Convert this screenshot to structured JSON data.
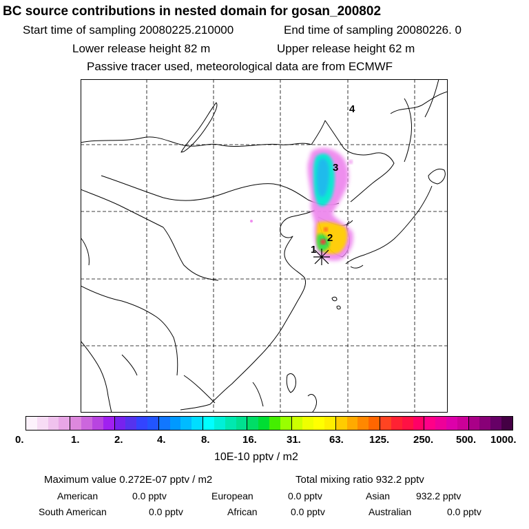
{
  "header": {
    "title": "BC  source contributions in nested domain for gosan_200802",
    "start_time": "Start time of sampling 20080225.210000",
    "end_time": "End time of sampling 20080226.     0",
    "lower_release": "Lower release height   82 m",
    "upper_release": "Upper release height   62 m",
    "tracer_note": "Passive tracer used, meteorological data are from ECMWF"
  },
  "map": {
    "markers": [
      {
        "label": "1"
      },
      {
        "label": "2"
      },
      {
        "label": "3"
      },
      {
        "label": "4"
      }
    ]
  },
  "colorbar": {
    "ticks": [
      "0.",
      "1.",
      "2.",
      "4.",
      "8.",
      "16.",
      "31.",
      "63.",
      "125.",
      "250.",
      "500.",
      "1000."
    ],
    "unit": "10E-10 pptv / m2",
    "segments": [
      [
        "#fdf2fc",
        "#f7dcf5",
        "#f0c2ee",
        "#e8a6e6"
      ],
      [
        "#dd88dd",
        "#cc66dd",
        "#b844e0",
        "#a020f0"
      ],
      [
        "#7722ee",
        "#5533ee",
        "#3344ff",
        "#2255ff"
      ],
      [
        "#1177ff",
        "#0099ff",
        "#00bbff",
        "#00ddff"
      ],
      [
        "#00ffff",
        "#00f0d8",
        "#00e8b0",
        "#00e090"
      ],
      [
        "#00dd66",
        "#00dd33",
        "#44ee00",
        "#99ff00"
      ],
      [
        "#ccff00",
        "#eeff00",
        "#ffff00",
        "#ffee00"
      ],
      [
        "#ffcc00",
        "#ffaa00",
        "#ff8800",
        "#ff6600"
      ],
      [
        "#ff4422",
        "#ff2233",
        "#ff1144",
        "#ff0066"
      ],
      [
        "#ff0088",
        "#ee0099",
        "#dd00aa",
        "#cc0099"
      ],
      [
        "#aa0088",
        "#880077",
        "#660066",
        "#440044"
      ]
    ]
  },
  "footer": {
    "max_value": "Maximum value  0.272E-07 pptv / m2",
    "total_mixing": "Total mixing ratio     932.2 pptv",
    "american_label": "American",
    "american_value": "0.0 pptv",
    "european_label": "European",
    "european_value": "0.0 pptv",
    "asian_label": "Asian",
    "asian_value": "932.2 pptv",
    "south_american_label": "South American",
    "south_american_value": "0.0 pptv",
    "african_label": "African",
    "african_value": "0.0 pptv",
    "australian_label": "Australian",
    "australian_value": "0.0 pptv"
  },
  "colors": {
    "plume_core": "#00e8d0",
    "plume_edge": "#ee88ee",
    "hotspot": "#ff2233"
  }
}
